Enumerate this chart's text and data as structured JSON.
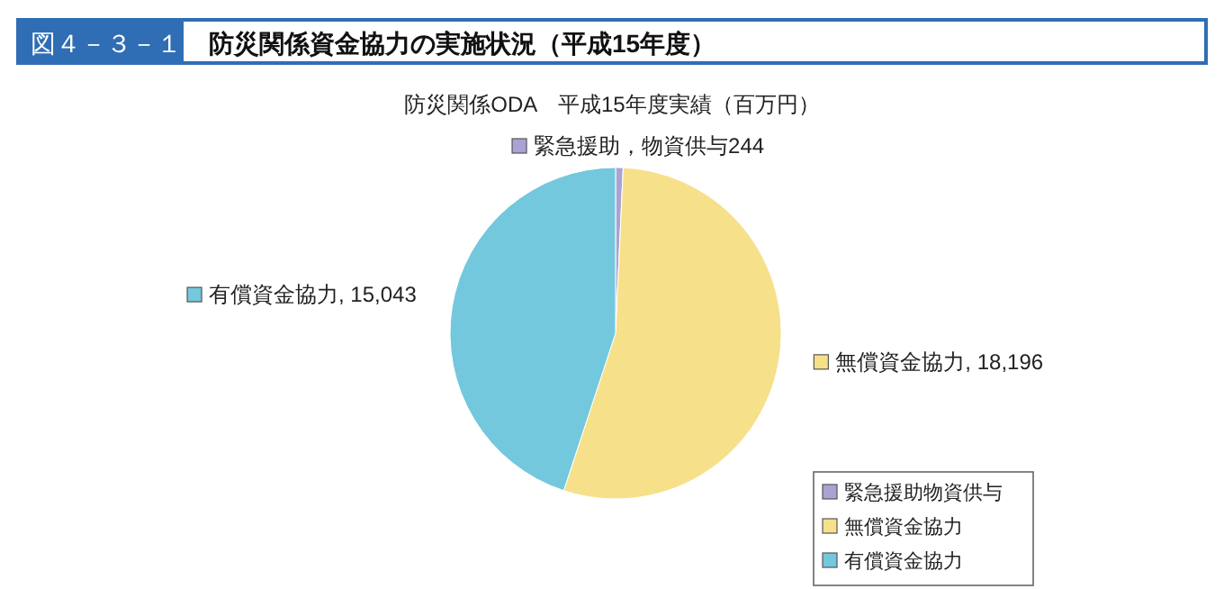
{
  "chart_data": {
    "type": "pie",
    "title": "防災関係資金協力の実施状況（平成15年度）",
    "subtitle": "防災関係ODA　平成15年度実績（百万円）",
    "annotations": [
      "図４－３－１"
    ],
    "categories": [
      "緊急援助物資供与",
      "無償資金協力",
      "有償資金協力"
    ],
    "values": [
      244,
      18196,
      15043
    ],
    "colors": [
      "#a9a3d3",
      "#f7e08a",
      "#74c8dd"
    ],
    "value_labels": [
      "緊急援助，物資供与244",
      "無償資金協力, 18,196",
      "有償資金協力, 15,043"
    ],
    "legend": "bottom right"
  }
}
